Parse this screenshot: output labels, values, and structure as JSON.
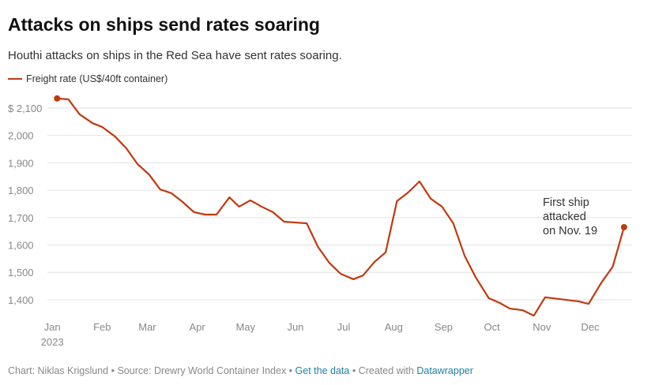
{
  "chart_data": {
    "type": "line",
    "title": "Attacks on ships send rates soaring",
    "subtitle": "Houthi attacks on ships in the Red Sea have sent rates soaring.",
    "x": [
      3,
      10,
      17,
      25,
      31,
      39,
      46,
      53,
      60,
      67,
      74,
      81,
      88,
      95,
      102,
      110,
      116,
      123,
      130,
      137,
      144,
      151,
      158,
      165,
      172,
      179,
      187,
      193,
      200,
      207,
      214,
      221,
      228,
      235,
      242,
      249,
      256,
      263,
      271,
      278,
      284,
      292,
      299,
      306,
      313,
      320,
      327,
      333,
      341,
      348,
      355
    ],
    "series": [
      {
        "name": "Freight rate (US$/40ft container)",
        "color": "#c1390f",
        "values": [
          2135,
          2132,
          2077,
          2045,
          2031,
          1996,
          1953,
          1895,
          1858,
          1803,
          1789,
          1757,
          1720,
          1711,
          1711,
          1774,
          1740,
          1763,
          1740,
          1720,
          1685,
          1682,
          1679,
          1593,
          1535,
          1495,
          1475,
          1489,
          1538,
          1573,
          1760,
          1792,
          1832,
          1769,
          1740,
          1679,
          1561,
          1481,
          1406,
          1388,
          1368,
          1362,
          1342,
          1409,
          1404,
          1399,
          1394,
          1385,
          1463,
          1521,
          1665
        ]
      }
    ],
    "xlim": [
      -3,
      360
    ],
    "xticks": [
      {
        "value": 0,
        "label": "Jan"
      },
      {
        "value": 31,
        "label": "Feb"
      },
      {
        "value": 59,
        "label": "Mar"
      },
      {
        "value": 90,
        "label": "Apr"
      },
      {
        "value": 120,
        "label": "May"
      },
      {
        "value": 151,
        "label": "Jun"
      },
      {
        "value": 181,
        "label": "Jul"
      },
      {
        "value": 212,
        "label": "Aug"
      },
      {
        "value": 243,
        "label": "Sep"
      },
      {
        "value": 273,
        "label": "Oct"
      },
      {
        "value": 304,
        "label": "Nov"
      },
      {
        "value": 334,
        "label": "Dec"
      }
    ],
    "x_year_label": "2023",
    "ylim": [
      1325,
      2150
    ],
    "yticks": [
      {
        "value": 1400,
        "label": "1,400"
      },
      {
        "value": 1500,
        "label": "1,500"
      },
      {
        "value": 1600,
        "label": "1,600"
      },
      {
        "value": 1700,
        "label": "1,700"
      },
      {
        "value": 1800,
        "label": "1,800"
      },
      {
        "value": 1900,
        "label": "1,900"
      },
      {
        "value": 2000,
        "label": "2,000"
      },
      {
        "value": 2100,
        "label": "$ 2,100"
      }
    ],
    "grid": true,
    "annotation": "First ship attacked on Nov. 19",
    "footer": {
      "credit": "Chart: Niklas Krigslund • Source: Drewry World Container Index •",
      "data_link": "Get the data",
      "created": "• Created with",
      "tool_link": "Datawrapper"
    }
  }
}
